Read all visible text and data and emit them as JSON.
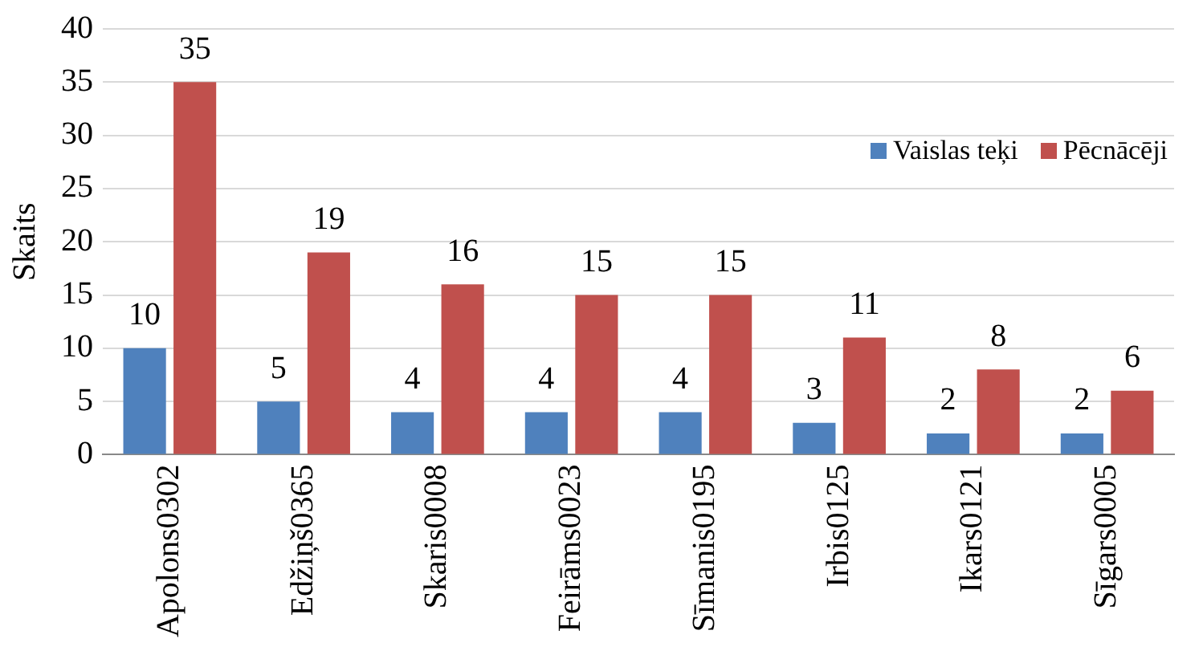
{
  "chart_data": {
    "type": "bar",
    "ylabel": "Skaits",
    "categories": [
      "Apolons0302",
      "Edžiņš0365",
      "Skaris0008",
      "Feirāms0023",
      "Sīmanis0195",
      "Irbis0125",
      "Ikars0121",
      "Sīgars0005"
    ],
    "series": [
      {
        "name": "Vaislas teķi",
        "color": "#4f81bd",
        "values": [
          10,
          5,
          4,
          4,
          4,
          3,
          2,
          2
        ]
      },
      {
        "name": "Pēcnācēji",
        "color": "#c0504d",
        "values": [
          35,
          19,
          16,
          15,
          15,
          11,
          8,
          6
        ]
      }
    ],
    "ylim": [
      0,
      40
    ],
    "yticks": [
      0,
      5,
      10,
      15,
      20,
      25,
      30,
      35,
      40
    ],
    "grid": "y",
    "legend": "top right",
    "data_labels": true
  }
}
